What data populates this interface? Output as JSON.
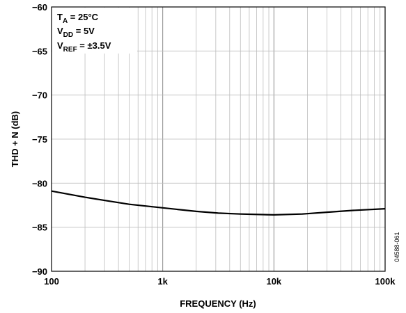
{
  "chart_data": {
    "type": "line",
    "title": "",
    "xlabel": "FREQUENCY (Hz)",
    "ylabel": "THD + N (dB)",
    "xscale": "log",
    "xlim": [
      100,
      100000
    ],
    "ylim": [
      -90,
      -60
    ],
    "grid": true,
    "x_tick_labels": [
      "100",
      "1k",
      "10k",
      "100k"
    ],
    "y_tick_labels": [
      "−60",
      "−65",
      "−70",
      "−75",
      "−80",
      "−85",
      "−90"
    ],
    "y_tick_values": [
      -60,
      -65,
      -70,
      -75,
      -80,
      -85,
      -90
    ],
    "series": [
      {
        "x": [
          100,
          200,
          316,
          500,
          1000,
          2000,
          3162,
          5000,
          10000,
          18000,
          30000,
          50000,
          100000
        ],
        "y": [
          -80.9,
          -81.6,
          -82.0,
          -82.4,
          -82.8,
          -83.2,
          -83.4,
          -83.5,
          -83.6,
          -83.5,
          -83.3,
          -83.1,
          -82.9
        ]
      }
    ],
    "conditions": {
      "ta_main": "T",
      "ta_sub": "A",
      "ta_value": " = 25°C",
      "vdd_main": "V",
      "vdd_sub": "DD",
      "vdd_value": " = 5V",
      "vref_main": "V",
      "vref_sub": "REF",
      "vref_value": " = ±3.5V"
    },
    "doc_id": "04588-061"
  }
}
